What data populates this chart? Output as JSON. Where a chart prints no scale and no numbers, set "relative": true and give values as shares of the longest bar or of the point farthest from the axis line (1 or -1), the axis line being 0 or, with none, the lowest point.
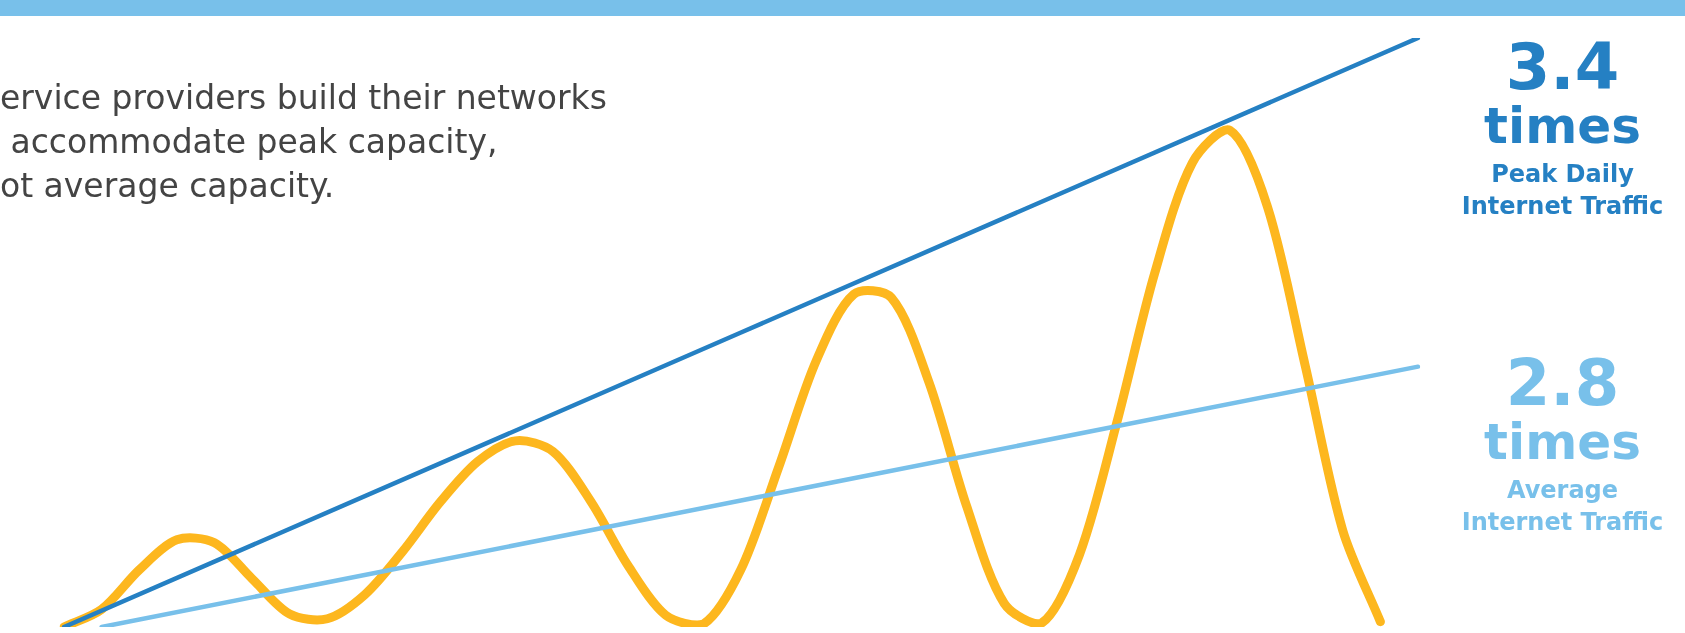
{
  "chart_data": {
    "type": "line",
    "relative": true,
    "title": "ervice providers build their networks\n accommodate peak capacity,\not average capacity.",
    "categories": [
      null,
      null,
      null,
      null,
      null,
      null,
      null,
      null,
      null,
      null,
      null,
      null,
      null,
      null,
      null,
      null,
      null,
      null,
      null,
      null,
      null,
      null,
      null,
      null,
      null,
      null,
      null,
      null,
      null,
      null,
      null,
      null,
      null,
      null,
      null,
      null,
      null
    ],
    "series": [
      {
        "name": "Peak Daily Internet Traffic",
        "color": "#2580c3",
        "values": [
          0,
          null,
          null,
          null,
          null,
          null,
          null,
          null,
          null,
          null,
          null,
          null,
          null,
          null,
          null,
          null,
          null,
          null,
          null,
          null,
          null,
          null,
          null,
          null,
          null,
          null,
          null,
          null,
          null,
          null,
          null,
          null,
          null,
          null,
          null,
          null,
          1
        ]
      },
      {
        "name": "Average Internet Traffic",
        "color": "#78c0ea",
        "values": [
          null,
          0,
          null,
          null,
          null,
          null,
          null,
          null,
          null,
          null,
          null,
          null,
          null,
          null,
          null,
          null,
          null,
          null,
          null,
          null,
          null,
          null,
          null,
          null,
          null,
          null,
          null,
          null,
          null,
          null,
          null,
          null,
          null,
          null,
          null,
          null,
          0.442
        ]
      },
      {
        "color": "#fdb71e",
        "values": [
          0,
          0.03,
          0.097,
          0.148,
          0.143,
          0.082,
          0.022,
          0.014,
          0.055,
          0.128,
          0.212,
          0.281,
          0.316,
          0.298,
          0.214,
          0.104,
          0.02,
          0.005,
          0.098,
          0.271,
          0.452,
          0.565,
          0.559,
          0.415,
          0.205,
          0.04,
          0.007,
          0.123,
          0.349,
          0.601,
          0.788,
          0.843,
          0.713,
          0.444,
          0.164,
          0.009,
          null
        ]
      }
    ],
    "annotations": [
      "3.4 times",
      "2.8 times"
    ],
    "legend": false
  }
}
